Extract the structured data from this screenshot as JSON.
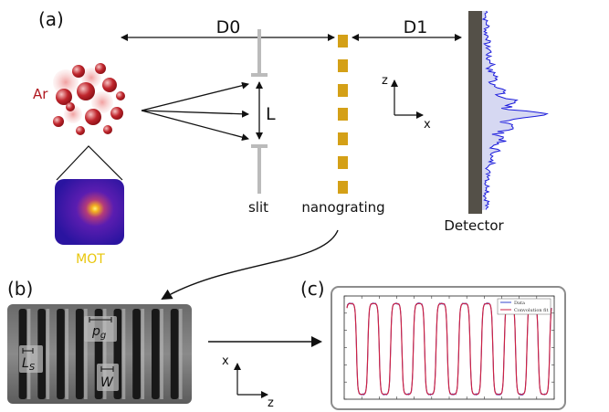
{
  "panels": {
    "a": "(a)",
    "b": "(b)",
    "c": "(c)"
  },
  "setup": {
    "d0": "D0",
    "d1": "D1",
    "l_label": "L",
    "atoms": "Ar",
    "mot": "MOT",
    "slit": "slit",
    "nanograting": "nanograting",
    "detector": "Detector",
    "axis_z": "z",
    "axis_x": "x"
  },
  "micrograph": {
    "pg_main": "p",
    "pg_sub": "g",
    "ls_main": "L",
    "ls_sub": "S",
    "w_label": "W"
  },
  "transform": {
    "axis_x": "x",
    "axis_z": "z"
  },
  "chart_data": {
    "type": "line",
    "title": "",
    "xlabel": "",
    "ylabel": "",
    "legend_position": "top-right",
    "periods": 9,
    "series": [
      {
        "name": "Data",
        "color": "#3344cc"
      },
      {
        "name": "Convolution fit",
        "color": "#cc2244"
      }
    ]
  },
  "colors": {
    "atom_red": "#b0171f",
    "mot_label": "#e8c60a",
    "grating_gold": "#d4a017",
    "detector_gray": "#545048",
    "signal_blue": "#1a1adb",
    "signal_fill": "#d6d8f2",
    "slit_gray": "#bbbbbb"
  }
}
